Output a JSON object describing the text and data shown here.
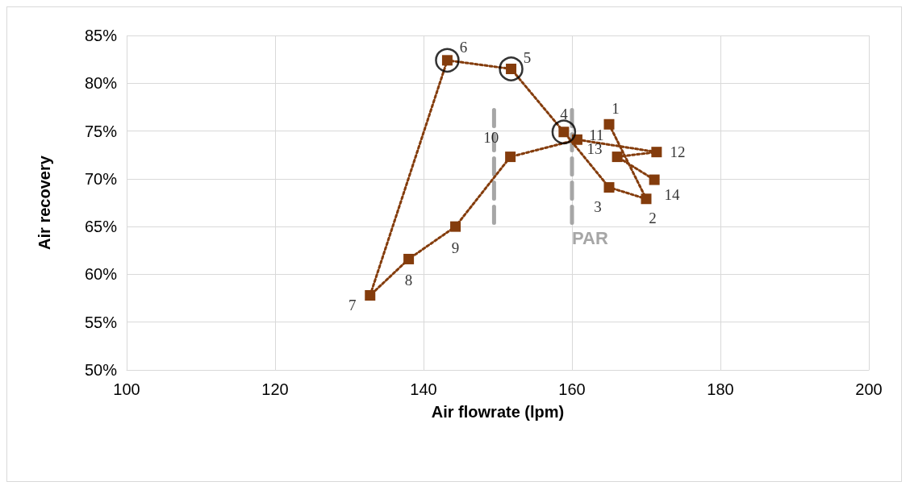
{
  "chart_data": {
    "type": "line",
    "xlabel": "Air flowrate (lpm)",
    "ylabel": "Air recovery",
    "xlim": [
      100,
      200
    ],
    "xticks": [
      100,
      120,
      140,
      160,
      180,
      200
    ],
    "ylim": [
      50,
      85
    ],
    "yticks": [
      {
        "value": 50,
        "label": "50%"
      },
      {
        "value": 55,
        "label": "55%"
      },
      {
        "value": 60,
        "label": "60%"
      },
      {
        "value": 65,
        "label": "65%"
      },
      {
        "value": 70,
        "label": "70%"
      },
      {
        "value": 75,
        "label": "75%"
      },
      {
        "value": 80,
        "label": "80%"
      },
      {
        "value": 85,
        "label": "85%"
      }
    ],
    "grid": true,
    "series": [
      {
        "color": "#843c0c",
        "marker": "square",
        "line_style": "dotted",
        "x": [
          165.0,
          170.0,
          165.0,
          158.9,
          151.8,
          143.2,
          132.8,
          138.0,
          144.3,
          151.7,
          160.7,
          171.4,
          166.1,
          171.1
        ],
        "values": [
          75.7,
          67.9,
          69.1,
          74.9,
          81.5,
          82.4,
          57.8,
          61.6,
          65.0,
          72.3,
          74.1,
          72.8,
          72.3,
          69.9
        ]
      },
      {
        "type": "scatter",
        "color": "#000000",
        "marker": "circle",
        "x": [
          158.9,
          151.8,
          143.2
        ],
        "values": [
          74.9,
          81.5,
          82.4
        ]
      },
      {
        "type": "line",
        "color": "#a6a6a6",
        "marker": "none",
        "line_style": "dashed",
        "x": [
          149.5,
          149.5
        ],
        "values": [
          65.4,
          77.8
        ]
      },
      {
        "type": "line",
        "color": "#a6a6a6",
        "marker": "none",
        "line_style": "dashed",
        "x": [
          160.0,
          160.0
        ],
        "values": [
          65.4,
          77.8
        ]
      }
    ],
    "annotations": [
      {
        "text": "1",
        "x": 165.0,
        "y": 75.7
      },
      {
        "text": "2",
        "x": 170.0,
        "y": 67.9
      },
      {
        "text": "3",
        "x": 165.0,
        "y": 69.1
      },
      {
        "text": "4",
        "x": 158.9,
        "y": 74.9
      },
      {
        "text": "5",
        "x": 151.8,
        "y": 81.5
      },
      {
        "text": "6",
        "x": 143.2,
        "y": 82.4
      },
      {
        "text": "7",
        "x": 132.8,
        "y": 57.8
      },
      {
        "text": "8",
        "x": 138.0,
        "y": 61.6
      },
      {
        "text": "9",
        "x": 144.3,
        "y": 65.0
      },
      {
        "text": "10",
        "x": 151.7,
        "y": 72.3
      },
      {
        "text": "11",
        "x": 160.7,
        "y": 74.1
      },
      {
        "text": "12",
        "x": 171.4,
        "y": 72.8
      },
      {
        "text": "13",
        "x": 166.1,
        "y": 72.3
      },
      {
        "text": "14",
        "x": 171.1,
        "y": 69.9
      },
      "PAR"
    ]
  }
}
